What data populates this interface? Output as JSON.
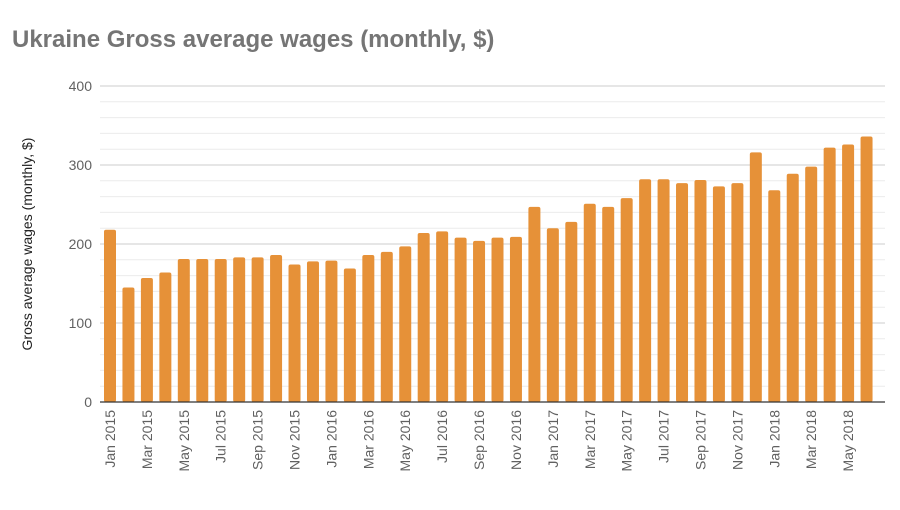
{
  "chart_data": {
    "type": "bar",
    "title": "Ukraine Gross average wages (monthly, $)",
    "xlabel": "",
    "ylabel": "Gross average wages (monthly, $)",
    "ylim": [
      0,
      400
    ],
    "yticks": [
      "0",
      "100",
      "200",
      "300",
      "400"
    ],
    "grid": true,
    "bar_color": "#e69138",
    "categories": [
      "Jan 2015",
      "Feb 2015",
      "Mar 2015",
      "Apr 2015",
      "May 2015",
      "Jun 2015",
      "Jul 2015",
      "Aug 2015",
      "Sep 2015",
      "Oct 2015",
      "Nov 2015",
      "Dec 2015",
      "Jan 2016",
      "Feb 2016",
      "Mar 2016",
      "Apr 2016",
      "May 2016",
      "Jun 2016",
      "Jul 2016",
      "Aug 2016",
      "Sep 2016",
      "Oct 2016",
      "Nov 2016",
      "Dec 2016",
      "Jan 2017",
      "Feb 2017",
      "Mar 2017",
      "Apr 2017",
      "May 2017",
      "Jun 2017",
      "Jul 2017",
      "Aug 2017",
      "Sep 2017",
      "Oct 2017",
      "Nov 2017",
      "Dec 2017",
      "Jan 2018",
      "Feb 2018",
      "Mar 2018",
      "Apr 2018",
      "May 2018",
      "Jun 2018"
    ],
    "values": [
      218,
      145,
      157,
      164,
      181,
      181,
      181,
      183,
      183,
      186,
      174,
      178,
      179,
      169,
      186,
      190,
      197,
      214,
      216,
      208,
      204,
      208,
      209,
      247,
      220,
      228,
      251,
      247,
      258,
      282,
      282,
      277,
      281,
      273,
      277,
      316,
      268,
      289,
      298,
      322,
      326,
      336
    ]
  }
}
